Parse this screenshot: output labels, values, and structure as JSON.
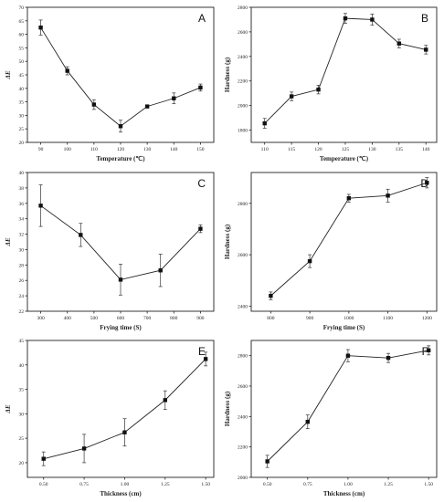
{
  "chart_data": [
    {
      "id": "A",
      "panel_label": "A",
      "type": "line",
      "xlabel": "Temperature (℃)",
      "ylabel": "ΔE",
      "ylabel_style": "italic",
      "x": [
        90,
        100,
        110,
        120,
        130,
        140,
        150
      ],
      "values": [
        62.5,
        46.5,
        34,
        26,
        33.3,
        36.3,
        40.3
      ],
      "errors": [
        2.8,
        1.5,
        1.8,
        2.2,
        0.5,
        2.0,
        1.3
      ],
      "xlim": [
        85,
        155
      ],
      "ylim": [
        20,
        70
      ],
      "xticks": [
        "90",
        "100",
        "110",
        "120",
        "130",
        "140",
        "150"
      ],
      "xtick_values": [
        90,
        100,
        110,
        120,
        130,
        140,
        150
      ],
      "yticks": [
        "20",
        "25",
        "30",
        "35",
        "40",
        "45",
        "50",
        "55",
        "60",
        "65",
        "70"
      ],
      "ytick_values": [
        20,
        25,
        30,
        35,
        40,
        45,
        50,
        55,
        60,
        65,
        70
      ]
    },
    {
      "id": "B",
      "panel_label": "B",
      "type": "line",
      "xlabel": "Temperature (℃)",
      "ylabel": "Hardness (g)",
      "ylabel_style": "bold",
      "x": [
        110,
        115,
        120,
        125,
        130,
        135,
        140
      ],
      "values": [
        1855,
        2075,
        2130,
        2710,
        2700,
        2505,
        2455
      ],
      "errors": [
        40,
        35,
        35,
        40,
        45,
        35,
        35
      ],
      "xlim": [
        107.5,
        142
      ],
      "ylim": [
        1700,
        2800
      ],
      "xticks": [
        "110",
        "115",
        "120",
        "125",
        "130",
        "135",
        "140"
      ],
      "xtick_values": [
        110,
        115,
        120,
        125,
        130,
        135,
        140
      ],
      "yticks": [
        "1800",
        "2000",
        "2200",
        "2400",
        "2600",
        "2800"
      ],
      "ytick_values": [
        1800,
        2000,
        2200,
        2400,
        2600,
        2800
      ]
    },
    {
      "id": "C",
      "panel_label": "C",
      "type": "line",
      "xlabel": "Frying time (S)",
      "ylabel": "ΔE",
      "ylabel_style": "italic",
      "x": [
        300,
        450,
        600,
        750,
        900
      ],
      "values": [
        35.7,
        31.9,
        26.1,
        27.3,
        32.7
      ],
      "errors": [
        2.7,
        1.5,
        2.0,
        2.1,
        0.5
      ],
      "xlim": [
        250,
        950
      ],
      "ylim": [
        22,
        40
      ],
      "xticks": [
        "300",
        "400",
        "500",
        "600",
        "700",
        "800",
        "900"
      ],
      "xtick_values": [
        300,
        400,
        500,
        600,
        700,
        800,
        900
      ],
      "yticks": [
        "22",
        "24",
        "26",
        "28",
        "30",
        "32",
        "34",
        "36",
        "38",
        "40"
      ],
      "ytick_values": [
        22,
        24,
        26,
        28,
        30,
        32,
        34,
        36,
        38,
        40
      ]
    },
    {
      "id": "D",
      "panel_label": "D",
      "type": "line",
      "xlabel": "Frying time (S)",
      "ylabel": "Hardness (g)",
      "ylabel_style": "bold",
      "x": [
        800,
        900,
        1000,
        1100,
        1200
      ],
      "values": [
        2440,
        2575,
        2820,
        2830,
        2880
      ],
      "errors": [
        15,
        25,
        15,
        25,
        20
      ],
      "xlim": [
        750,
        1225
      ],
      "ylim": [
        2380,
        2920
      ],
      "xticks": [
        "800",
        "900",
        "1000",
        "1100",
        "1200"
      ],
      "xtick_values": [
        800,
        900,
        1000,
        1100,
        1200
      ],
      "yticks": [
        "2400",
        "2600",
        "2800"
      ],
      "ytick_values": [
        2400,
        2600,
        2800
      ]
    },
    {
      "id": "E",
      "panel_label": "E",
      "type": "line",
      "xlabel": "Thickness (cm)",
      "ylabel": "ΔE",
      "ylabel_style": "italic",
      "x": [
        0.5,
        0.75,
        1.0,
        1.25,
        1.5
      ],
      "values": [
        20.8,
        22.9,
        26.2,
        32.8,
        41.2
      ],
      "errors": [
        1.4,
        2.9,
        2.8,
        1.9,
        1.4
      ],
      "xlim": [
        0.4,
        1.55
      ],
      "ylim": [
        17,
        45
      ],
      "xticks": [
        "0.50",
        "0.75",
        "1.00",
        "1.25",
        "1.50"
      ],
      "xtick_values": [
        0.5,
        0.75,
        1.0,
        1.25,
        1.5
      ],
      "yticks": [
        "20",
        "25",
        "30",
        "35",
        "40",
        "45"
      ],
      "ytick_values": [
        20,
        25,
        30,
        35,
        40,
        45
      ]
    },
    {
      "id": "F",
      "panel_label": "F",
      "type": "line",
      "xlabel": "Thickness (cm)",
      "ylabel": "Hardness (g)",
      "ylabel_style": "bold",
      "x": [
        0.5,
        0.75,
        1.0,
        1.25,
        1.5
      ],
      "values": [
        2105,
        2365,
        2800,
        2785,
        2835
      ],
      "errors": [
        40,
        45,
        40,
        30,
        30
      ],
      "xlim": [
        0.4,
        1.55
      ],
      "ylim": [
        2000,
        2900
      ],
      "xticks": [
        "0.50",
        "0.75",
        "1.00",
        "1.25",
        "1.50"
      ],
      "xtick_values": [
        0.5,
        0.75,
        1.0,
        1.25,
        1.5
      ],
      "yticks": [
        "2000",
        "2200",
        "2400",
        "2600",
        "2800"
      ],
      "ytick_values": [
        2000,
        2200,
        2400,
        2600,
        2800
      ]
    }
  ]
}
